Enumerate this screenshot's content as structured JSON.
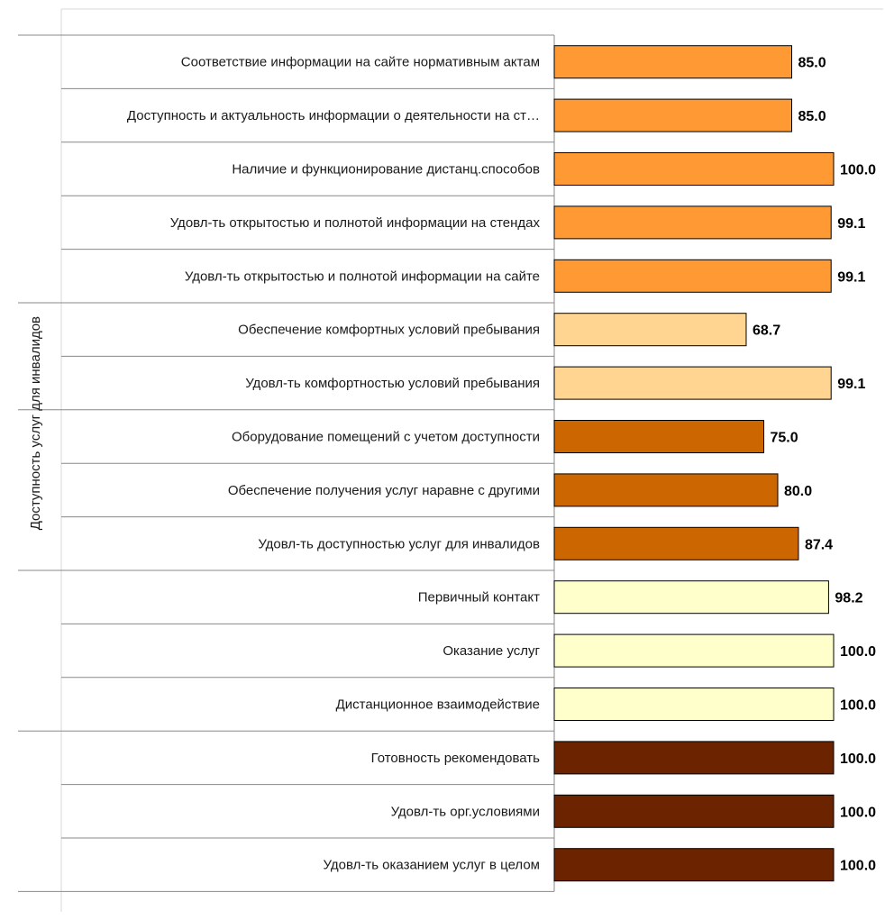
{
  "chart_data": {
    "type": "bar",
    "orientation": "horizontal",
    "xlim": [
      0,
      100
    ],
    "grid": false,
    "legend": "none",
    "group_label": "Доступность услуг для инвалидов",
    "categories": [
      "Соответствие информации на сайте нормативным актам",
      "Доступность и актуальность информации о деятельности на ст…",
      "Наличие и функционирование дистанц.способов",
      "Удовл-ть открытостью и полнотой информации на  стендах",
      "Удовл-ть открытостью и полнотой информации на сайте",
      "Обеспечение комфортных условий пребывания",
      "Удовл-ть комфортностью условий пребывания",
      "Оборудование помещений с учетом доступности",
      "Обеспечение получения услуг наравне с другими",
      "Удовл-ть доступностью услуг для инвалидов",
      "Первичный контакт",
      "Оказание услуг",
      "Дистанционное взаимодействие",
      "Готовность рекомендовать",
      "Удовл-ть орг.условиями",
      "Удовл-ть оказанием услуг в целом"
    ],
    "values": [
      85.0,
      85.0,
      100.0,
      99.1,
      99.1,
      68.7,
      99.1,
      75.0,
      80.0,
      87.4,
      98.2,
      100.0,
      100.0,
      100.0,
      100.0,
      100.0
    ],
    "value_labels": [
      "85.0",
      "85.0",
      "100.0",
      "99.1",
      "99.1",
      "68.7",
      "99.1",
      "75.0",
      "80.0",
      "87.4",
      "98.2",
      "100.0",
      "100.0",
      "100.0",
      "100.0",
      "100.0"
    ],
    "bar_colors": [
      "#FF9933",
      "#FF9933",
      "#FF9933",
      "#FF9933",
      "#FF9933",
      "#FFD591",
      "#FFD591",
      "#CC6600",
      "#CC6600",
      "#CC6600",
      "#FFFFCC",
      "#FFFFCC",
      "#FFFFCC",
      "#6B2300",
      "#6B2300",
      "#6B2300"
    ],
    "group_breaks_after": [
      4,
      6,
      9,
      12
    ]
  }
}
